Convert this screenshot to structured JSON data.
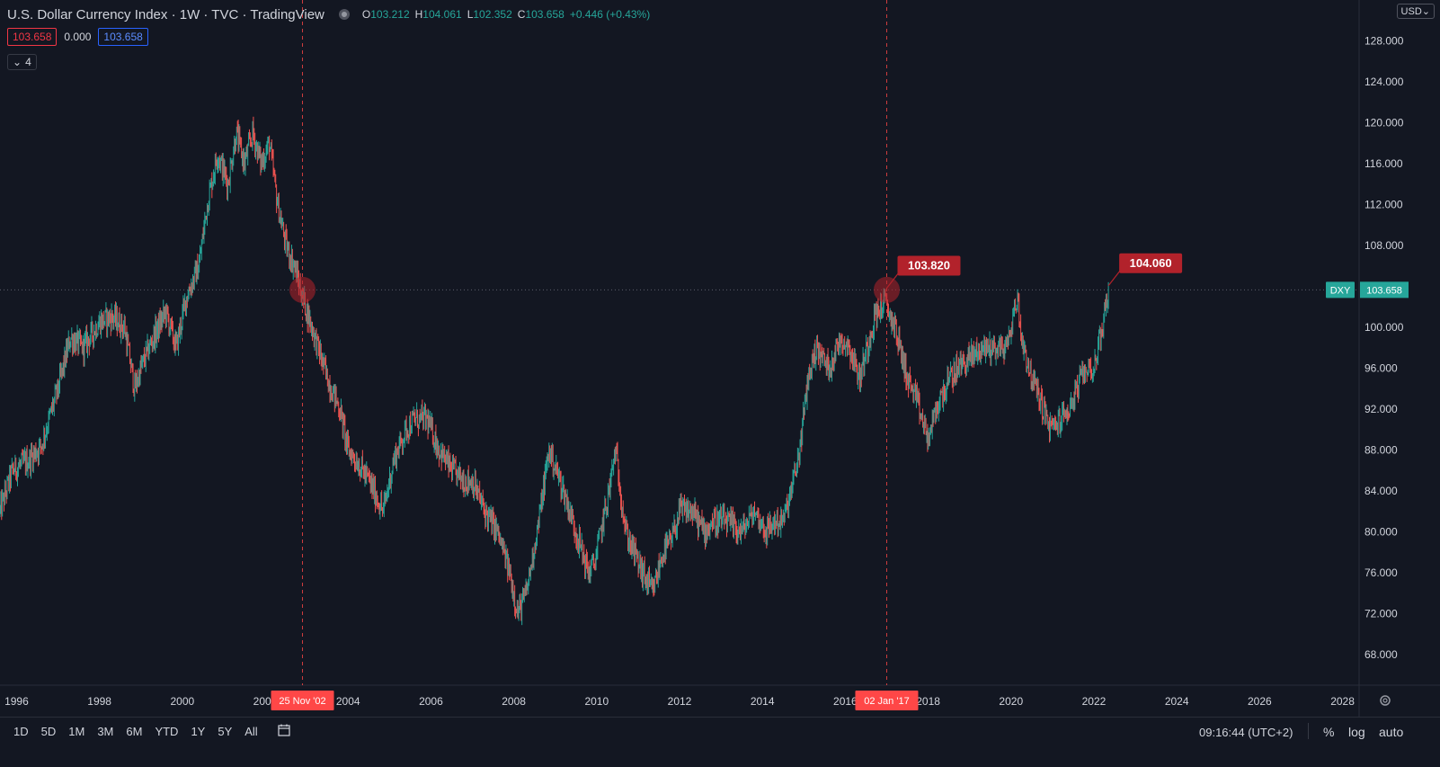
{
  "header": {
    "title": "U.S. Dollar Currency Index · 1W · TVC · TradingView",
    "o_label": "O",
    "o_value": "103.212",
    "h_label": "H",
    "h_value": "104.061",
    "l_label": "L",
    "l_value": "102.352",
    "c_label": "C",
    "c_value": "103.658",
    "change": "+0.446 (+0.43%)"
  },
  "values_row": {
    "sell": "103.658",
    "spread": "0.000",
    "buy": "103.658"
  },
  "collapse_count": "4",
  "currency": "USD",
  "colors": {
    "up": "#26a69a",
    "down": "#ef5350",
    "background": "#131722",
    "marker": "#b2222b",
    "crosshair": "#ff4747"
  },
  "chart_data": {
    "type": "line",
    "symbol": "DXY",
    "last_value": "103.658",
    "ylim": [
      65,
      132
    ],
    "xlim": [
      1995.6,
      2028.4
    ],
    "y_ticks": [
      "68.000",
      "72.000",
      "76.000",
      "80.000",
      "84.000",
      "88.000",
      "92.000",
      "96.000",
      "100.000",
      "104.000",
      "108.000",
      "112.000",
      "116.000",
      "120.000",
      "124.000",
      "128.000"
    ],
    "x_ticks": [
      "1996",
      "1998",
      "2000",
      "2002",
      "2004",
      "2006",
      "2008",
      "2010",
      "2012",
      "2014",
      "2016",
      "2018",
      "2020",
      "2022",
      "2024",
      "2026",
      "2028"
    ],
    "series": [
      {
        "x": [
          1995.6,
          1995.9,
          1996.3,
          1996.6,
          1997.0,
          1997.3,
          1997.6,
          1998.0,
          1998.3,
          1998.6,
          1998.85,
          1999.0,
          1999.3,
          1999.6,
          1999.85,
          2000.1,
          2000.4,
          2000.6,
          2000.85,
          2001.1,
          2001.3,
          2001.5,
          2001.7,
          2001.9,
          2002.1,
          2002.3,
          2002.5,
          2002.7,
          2002.9,
          2003.2,
          2003.5,
          2003.8,
          2004.0,
          2004.2,
          2004.5,
          2004.85,
          2005.1,
          2005.4,
          2005.6,
          2005.9,
          2006.2,
          2006.5,
          2006.8,
          2007.0,
          2007.3,
          2007.6,
          2007.9,
          2008.1,
          2008.3,
          2008.6,
          2008.85,
          2009.2,
          2009.5,
          2009.8,
          2009.95,
          2010.3,
          2010.45,
          2010.7,
          2010.9,
          2011.1,
          2011.35,
          2011.6,
          2011.8,
          2012.0,
          2012.3,
          2012.6,
          2012.8,
          2013.1,
          2013.5,
          2013.8,
          2014.1,
          2014.3,
          2014.5,
          2014.7,
          2014.9,
          2015.1,
          2015.3,
          2015.6,
          2015.9,
          2016.1,
          2016.35,
          2016.7,
          2016.95,
          2017.2,
          2017.5,
          2017.7,
          2018.0,
          2018.2,
          2018.4,
          2018.7,
          2019.0,
          2019.3,
          2019.6,
          2019.9,
          2020.15,
          2020.25,
          2020.5,
          2020.7,
          2020.95,
          2021.2,
          2021.4,
          2021.6,
          2021.8,
          2022.0,
          2022.2,
          2022.35
        ],
        "y": [
          82,
          86,
          87,
          88.5,
          94,
          99,
          98,
          100.5,
          101,
          100,
          94,
          96,
          99,
          101.5,
          98,
          103,
          106,
          112,
          117,
          114,
          119,
          116,
          119,
          116,
          118,
          112,
          108,
          106,
          103,
          99,
          95,
          92,
          88,
          87,
          85,
          82,
          87,
          90,
          91,
          91,
          88,
          86,
          85,
          85,
          82,
          80,
          76,
          72,
          74,
          81,
          88,
          84,
          80,
          76,
          77,
          84,
          88,
          80,
          78,
          76,
          74,
          78,
          79,
          82,
          82,
          80,
          81,
          81,
          80,
          82,
          80,
          81,
          81,
          84,
          88,
          95,
          98,
          96,
          99,
          98,
          95,
          101,
          102.5,
          100,
          95,
          93,
          89,
          92,
          94,
          96,
          97,
          98,
          98,
          98,
          103,
          99,
          95,
          93,
          90,
          91,
          92,
          94,
          96,
          96,
          100,
          103.658
        ]
      }
    ],
    "annotations": [
      {
        "label": "103.820",
        "date": "2017.0",
        "value": 103.82
      },
      {
        "label": "104.060",
        "date": "2022.35",
        "value": 104.06
      }
    ],
    "crosshair_labels": [
      {
        "label": "25 Nov '02",
        "x": 2002.9
      },
      {
        "label": "02 Jan '17",
        "x": 2017.0
      }
    ],
    "horizontal_line_value": 103.658,
    "grid": false
  },
  "bottom_bar": {
    "ranges": [
      "1D",
      "5D",
      "1M",
      "3M",
      "6M",
      "YTD",
      "1Y",
      "5Y",
      "All"
    ],
    "time": "09:16:44 (UTC+2)",
    "percent": "%",
    "log": "log",
    "auto": "auto"
  }
}
